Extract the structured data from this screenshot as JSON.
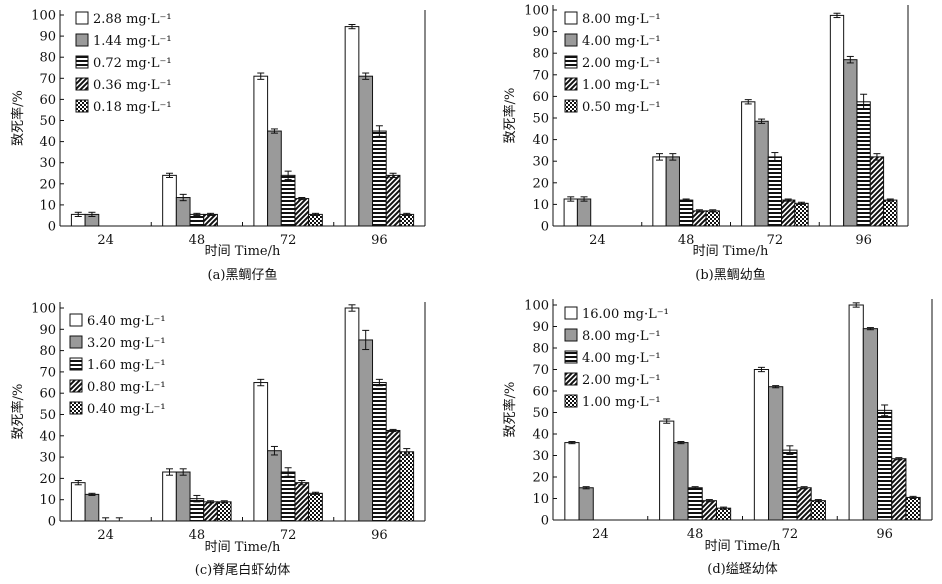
{
  "colors": {
    "ink": "#111111",
    "white": "#ffffff",
    "gray": "#9a9a9a"
  },
  "patterns": [
    "white",
    "gray",
    "horizontal",
    "diagonal",
    "checker"
  ],
  "chart_data": [
    {
      "type": "bar",
      "caption": "(a)黑鲷仔鱼",
      "xlabel": "时间 Time/h",
      "ylabel": "致死率/%",
      "ylim": [
        0,
        100
      ],
      "yticks": [
        0,
        10,
        20,
        30,
        40,
        50,
        60,
        70,
        80,
        90,
        100
      ],
      "categories": [
        "24",
        "48",
        "72",
        "96"
      ],
      "legend_position": "top-left",
      "grid": false,
      "series": [
        {
          "name": "2.88 mg·L⁻¹",
          "values": [
            5.5,
            24,
            71,
            94.5
          ],
          "errors": [
            1,
            1,
            1.5,
            1
          ]
        },
        {
          "name": "1.44 mg·L⁻¹",
          "values": [
            5.5,
            13.5,
            45,
            71
          ],
          "errors": [
            1,
            1.5,
            1,
            1.5
          ]
        },
        {
          "name": "0.72 mg·L⁻¹",
          "values": [
            0,
            5.5,
            24,
            45
          ],
          "errors": [
            0,
            0.5,
            2,
            2.5
          ]
        },
        {
          "name": "0.36 mg·L⁻¹",
          "values": [
            0,
            5.5,
            13,
            24
          ],
          "errors": [
            0,
            0.5,
            0.5,
            1
          ]
        },
        {
          "name": "0.18 mg·L⁻¹",
          "values": [
            0,
            0,
            5.5,
            5.5
          ],
          "errors": [
            0,
            0,
            0.5,
            0.5
          ]
        }
      ]
    },
    {
      "type": "bar",
      "caption": "(b)黑鲷幼鱼",
      "xlabel": "时间 Time/h",
      "ylabel": "致死率/%",
      "ylim": [
        0,
        100
      ],
      "yticks": [
        0,
        10,
        20,
        30,
        40,
        50,
        60,
        70,
        80,
        90,
        100
      ],
      "categories": [
        "24",
        "48",
        "72",
        "96"
      ],
      "legend_position": "top-left",
      "grid": false,
      "series": [
        {
          "name": "8.00 mg·L⁻¹",
          "values": [
            12.5,
            32,
            57.5,
            97.5
          ],
          "errors": [
            1,
            1.5,
            1,
            1
          ]
        },
        {
          "name": "4.00 mg·L⁻¹",
          "values": [
            12.5,
            32,
            48.5,
            77
          ],
          "errors": [
            1,
            1.5,
            1,
            1.5
          ]
        },
        {
          "name": "2.00 mg·L⁻¹",
          "values": [
            0,
            12,
            32,
            57.5
          ],
          "errors": [
            0,
            0.5,
            2,
            3.5
          ]
        },
        {
          "name": "1.00 mg·L⁻¹",
          "values": [
            0,
            7,
            12,
            32
          ],
          "errors": [
            0,
            0.5,
            0.5,
            1.5
          ]
        },
        {
          "name": "0.50 mg·L⁻¹",
          "values": [
            0,
            7,
            10.5,
            12
          ],
          "errors": [
            0,
            0.5,
            0.5,
            0.5
          ]
        }
      ]
    },
    {
      "type": "bar",
      "caption": "(c)脊尾白虾幼体",
      "xlabel": "时间 Time/h",
      "ylabel": "致死率/%",
      "ylim": [
        0,
        100
      ],
      "yticks": [
        0,
        10,
        20,
        30,
        40,
        50,
        60,
        70,
        80,
        90,
        100
      ],
      "categories": [
        "24",
        "48",
        "72",
        "96"
      ],
      "legend_position": "top-left",
      "grid": false,
      "series": [
        {
          "name": "6.40 mg·L⁻¹",
          "values": [
            18,
            23,
            65,
            100
          ],
          "errors": [
            1,
            1.5,
            1.5,
            1.5
          ]
        },
        {
          "name": "3.20 mg·L⁻¹",
          "values": [
            12.5,
            23,
            33,
            85
          ],
          "errors": [
            0.5,
            1.5,
            2,
            4.5
          ]
        },
        {
          "name": "1.60 mg·L⁻¹",
          "values": [
            0,
            10.5,
            23,
            65
          ],
          "errors": [
            1.5,
            1.5,
            2,
            1.5
          ]
        },
        {
          "name": "0.80 mg·L⁻¹",
          "values": [
            0,
            9,
            18,
            42.5
          ],
          "errors": [
            1.5,
            0.5,
            1,
            0.5
          ]
        },
        {
          "name": "0.40 mg·L⁻¹",
          "values": [
            0,
            9,
            13,
            32.5
          ],
          "errors": [
            0,
            0.5,
            0.5,
            1.5
          ]
        }
      ]
    },
    {
      "type": "bar",
      "caption": "(d)缢蛏幼体",
      "xlabel": "时间 Time/h",
      "ylabel": "致死率/%",
      "ylim": [
        0,
        100
      ],
      "yticks": [
        0,
        10,
        20,
        30,
        40,
        50,
        60,
        70,
        80,
        90,
        100
      ],
      "categories": [
        "24",
        "48",
        "72",
        "96"
      ],
      "legend_position": "top-left",
      "grid": false,
      "series": [
        {
          "name": "16.00 mg·L⁻¹",
          "values": [
            36,
            46,
            70,
            100
          ],
          "errors": [
            0.5,
            1,
            1,
            1
          ]
        },
        {
          "name": "8.00 mg·L⁻¹",
          "values": [
            15,
            36,
            62,
            89
          ],
          "errors": [
            0.5,
            0.5,
            0.5,
            0.5
          ]
        },
        {
          "name": "4.00 mg·L⁻¹",
          "values": [
            0,
            15,
            32.5,
            51
          ],
          "errors": [
            0,
            0.5,
            2,
            2.5
          ]
        },
        {
          "name": "2.00 mg·L⁻¹",
          "values": [
            0,
            9,
            15,
            28.5
          ],
          "errors": [
            0,
            0.5,
            0.5,
            0.5
          ]
        },
        {
          "name": "1.00 mg·L⁻¹",
          "values": [
            0,
            5.5,
            9,
            10.5
          ],
          "errors": [
            0,
            0.5,
            0.5,
            0.5
          ]
        }
      ]
    }
  ]
}
